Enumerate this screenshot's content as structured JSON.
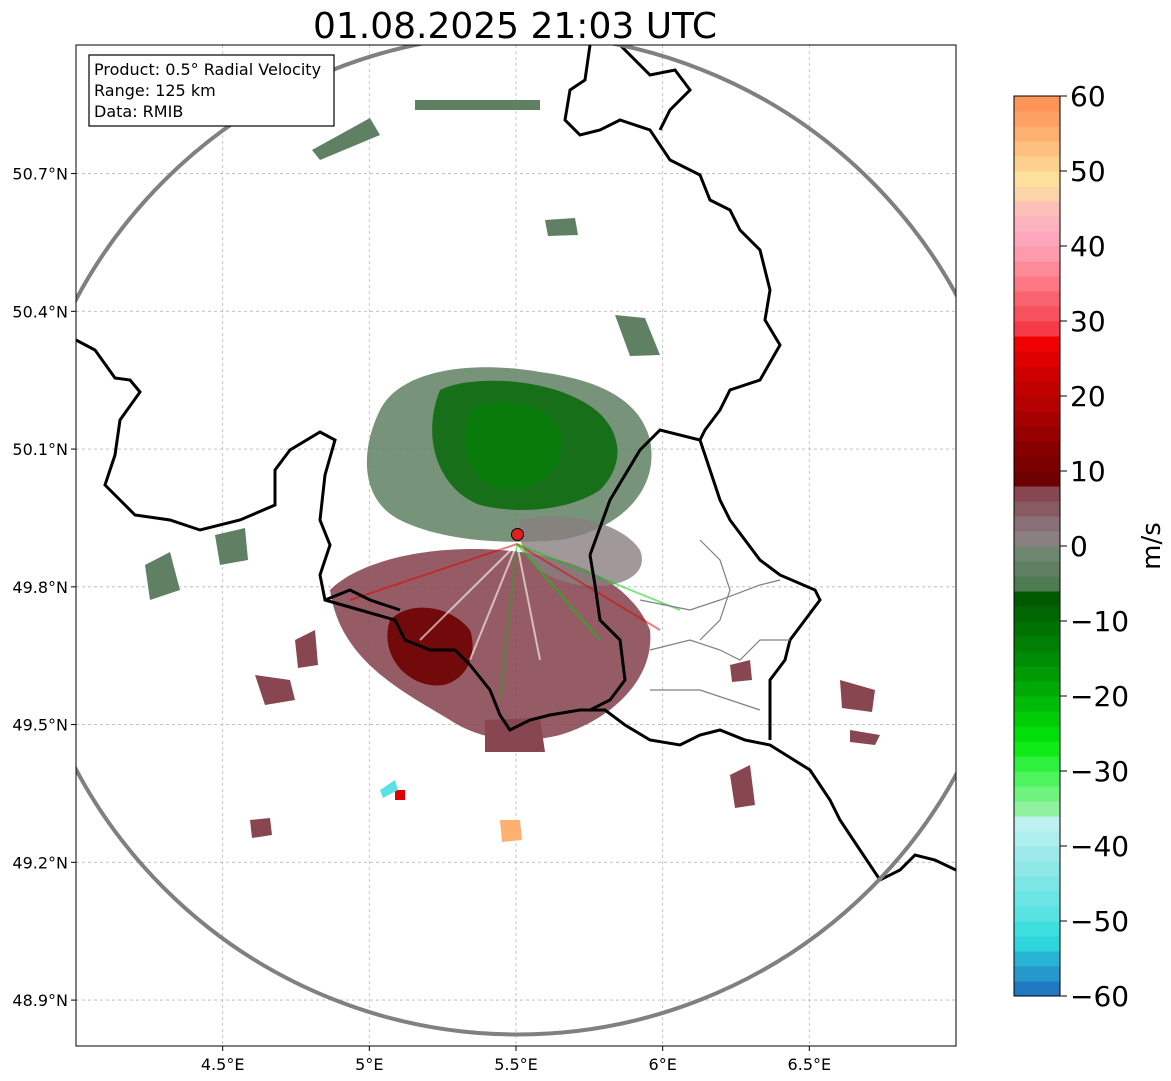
{
  "title": "01.08.2025 21:03 UTC",
  "info_box": {
    "product": "Product: 0.5° Radial Velocity",
    "range": "Range: 125 km",
    "data": "Data: RMIB"
  },
  "map": {
    "lat_ticks": [
      {
        "value": 50.7,
        "label": "50.7°N"
      },
      {
        "value": 50.4,
        "label": "50.4°N"
      },
      {
        "value": 50.1,
        "label": "50.1°N"
      },
      {
        "value": 49.8,
        "label": "49.8°N"
      },
      {
        "value": 49.5,
        "label": "49.5°N"
      },
      {
        "value": 49.2,
        "label": "49.2°N"
      },
      {
        "value": 48.9,
        "label": "48.9°N"
      }
    ],
    "lon_ticks": [
      {
        "value": 4.5,
        "label": "4.5°E"
      },
      {
        "value": 5.0,
        "label": "5°E"
      },
      {
        "value": 5.5,
        "label": "5.5°E"
      },
      {
        "value": 6.0,
        "label": "6°E"
      },
      {
        "value": 6.5,
        "label": "6.5°E"
      }
    ],
    "lon_range": [
      4.0,
      7.0
    ],
    "lat_range": [
      48.8,
      50.98
    ],
    "radar_site": {
      "lon": 5.505,
      "lat": 49.914,
      "color": "#e02020"
    },
    "range_ring_color": "#808080",
    "gridlines": true
  },
  "colorbar": {
    "label": "m/s",
    "min": -60,
    "max": 60,
    "ticks": [
      {
        "value": 60,
        "label": "60"
      },
      {
        "value": 50,
        "label": "50"
      },
      {
        "value": 40,
        "label": "40"
      },
      {
        "value": 30,
        "label": "30"
      },
      {
        "value": 20,
        "label": "20"
      },
      {
        "value": 10,
        "label": "10"
      },
      {
        "value": 0,
        "label": "0"
      },
      {
        "value": -10,
        "label": "−10"
      },
      {
        "value": -20,
        "label": "−20"
      },
      {
        "value": -30,
        "label": "−30"
      },
      {
        "value": -40,
        "label": "−40"
      },
      {
        "value": -50,
        "label": "−50"
      },
      {
        "value": -60,
        "label": "−60"
      }
    ],
    "stops": [
      {
        "from": -60,
        "to": -58,
        "color": "#1f78c0"
      },
      {
        "from": -58,
        "to": -56,
        "color": "#2598cc"
      },
      {
        "from": -56,
        "to": -54,
        "color": "#27b3d3"
      },
      {
        "from": -54,
        "to": -52,
        "color": "#2cd6dc"
      },
      {
        "from": -52,
        "to": -50,
        "color": "#3fdfe0"
      },
      {
        "from": -50,
        "to": -48,
        "color": "#5ae2e2"
      },
      {
        "from": -48,
        "to": -46,
        "color": "#6ae4e4"
      },
      {
        "from": -46,
        "to": -44,
        "color": "#7ce6e6"
      },
      {
        "from": -44,
        "to": -42,
        "color": "#8fe8e8"
      },
      {
        "from": -42,
        "to": -40,
        "color": "#9eeaea"
      },
      {
        "from": -40,
        "to": -38,
        "color": "#aeeeee"
      },
      {
        "from": -38,
        "to": -36,
        "color": "#bdf0f0"
      },
      {
        "from": -36,
        "to": -34,
        "color": "#8ff29f"
      },
      {
        "from": -34,
        "to": -32,
        "color": "#6ef47e"
      },
      {
        "from": -32,
        "to": -30,
        "color": "#4ef45e"
      },
      {
        "from": -30,
        "to": -28,
        "color": "#2ef13e"
      },
      {
        "from": -28,
        "to": -26,
        "color": "#10ea16"
      },
      {
        "from": -26,
        "to": -24,
        "color": "#02de0a"
      },
      {
        "from": -24,
        "to": -22,
        "color": "#00cc08"
      },
      {
        "from": -22,
        "to": -20,
        "color": "#00bb07"
      },
      {
        "from": -20,
        "to": -18,
        "color": "#00aa06"
      },
      {
        "from": -18,
        "to": -16,
        "color": "#009a05"
      },
      {
        "from": -16,
        "to": -14,
        "color": "#008c04"
      },
      {
        "from": -14,
        "to": -12,
        "color": "#007f04"
      },
      {
        "from": -12,
        "to": -10,
        "color": "#007203"
      },
      {
        "from": -10,
        "to": -8,
        "color": "#006602"
      },
      {
        "from": -8,
        "to": -6,
        "color": "#005a02"
      },
      {
        "from": -6,
        "to": -4,
        "color": "#4f7a52"
      },
      {
        "from": -4,
        "to": -2,
        "color": "#5f8062"
      },
      {
        "from": -2,
        "to": 0,
        "color": "#6f8670"
      },
      {
        "from": 0,
        "to": 2,
        "color": "#8a8080"
      },
      {
        "from": 2,
        "to": 4,
        "color": "#8a6f78"
      },
      {
        "from": 4,
        "to": 6,
        "color": "#885a62"
      },
      {
        "from": 6,
        "to": 8,
        "color": "#874650"
      },
      {
        "from": 8,
        "to": 10,
        "color": "#6e0000"
      },
      {
        "from": 10,
        "to": 12,
        "color": "#7a0000"
      },
      {
        "from": 12,
        "to": 14,
        "color": "#870000"
      },
      {
        "from": 14,
        "to": 16,
        "color": "#960000"
      },
      {
        "from": 16,
        "to": 18,
        "color": "#a60000"
      },
      {
        "from": 18,
        "to": 20,
        "color": "#b50000"
      },
      {
        "from": 20,
        "to": 22,
        "color": "#c30000"
      },
      {
        "from": 22,
        "to": 24,
        "color": "#d10000"
      },
      {
        "from": 24,
        "to": 26,
        "color": "#df0000"
      },
      {
        "from": 26,
        "to": 28,
        "color": "#f00000"
      },
      {
        "from": 28,
        "to": 30,
        "color": "#f63a48"
      },
      {
        "from": 30,
        "to": 32,
        "color": "#f8505c"
      },
      {
        "from": 32,
        "to": 34,
        "color": "#fa6470"
      },
      {
        "from": 34,
        "to": 36,
        "color": "#fb7884"
      },
      {
        "from": 36,
        "to": 38,
        "color": "#fc8a98"
      },
      {
        "from": 38,
        "to": 40,
        "color": "#fd9aac"
      },
      {
        "from": 40,
        "to": 42,
        "color": "#fda6bc"
      },
      {
        "from": 42,
        "to": 44,
        "color": "#fdb2c0"
      },
      {
        "from": 44,
        "to": 46,
        "color": "#fdc0b8"
      },
      {
        "from": 46,
        "to": 48,
        "color": "#fdd4a8"
      },
      {
        "from": 48,
        "to": 50,
        "color": "#fde09c"
      },
      {
        "from": 50,
        "to": 52,
        "color": "#fdd090"
      },
      {
        "from": 52,
        "to": 54,
        "color": "#fdc080"
      },
      {
        "from": 54,
        "to": 56,
        "color": "#fdb070"
      },
      {
        "from": 56,
        "to": 58,
        "color": "#fda064"
      },
      {
        "from": 58,
        "to": 60,
        "color": "#fd9458"
      }
    ]
  }
}
